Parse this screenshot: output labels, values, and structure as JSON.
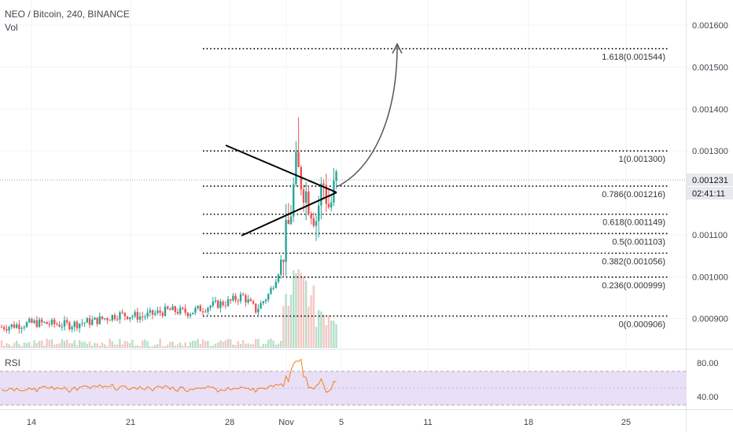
{
  "legend": {
    "symbol": "NEO / Bitcoin, 240, BINANCE",
    "volume": "Vol"
  },
  "rsi_panel": {
    "label": "RSI",
    "ticks": [
      "80.00",
      "40.00"
    ]
  },
  "price_axis": {
    "ticks": [
      "0.001600",
      "0.001500",
      "0.001400",
      "0.001300",
      "0.001100",
      "0.001000",
      "0.000900"
    ],
    "last_price": "0.001231",
    "countdown": "02:41:11",
    "last_price_color": "#26a69a",
    "countdown_color": "#e7e9ee"
  },
  "time_axis": {
    "ticks": [
      "14",
      "21",
      "28",
      "Nov",
      "5",
      "11",
      "18",
      "25"
    ]
  },
  "colors": {
    "up": "#26a69a",
    "down": "#ef5350",
    "up_volume": "#b7dfc9",
    "down_volume": "#f5c7c4",
    "rsi_line": "#f57f17",
    "rsi_band": "#e9dff6",
    "grid": "#f0f3fa",
    "drawing": "#000000",
    "arrow": "#555555"
  },
  "chart_data": {
    "type": "candlestick",
    "price_range": [
      0.00083,
      0.00166
    ],
    "rsi_range": [
      26,
      95
    ],
    "fibonacci_levels": [
      {
        "label": "1.618(0.001544)",
        "ratio": 1.618,
        "price": 0.001544
      },
      {
        "label": "1(0.001300)",
        "ratio": 1,
        "price": 0.0013
      },
      {
        "label": "0.786(0.001216)",
        "ratio": 0.786,
        "price": 0.001216
      },
      {
        "label": "0.618(0.001149)",
        "ratio": 0.618,
        "price": 0.001149
      },
      {
        "label": "0.5(0.001103)",
        "ratio": 0.5,
        "price": 0.001103
      },
      {
        "label": "0.382(0.001056)",
        "ratio": 0.382,
        "price": 0.001056
      },
      {
        "label": "0.236(0.000999)",
        "ratio": 0.236,
        "price": 0.000999
      },
      {
        "label": "0(0.000906)",
        "ratio": 0,
        "price": 0.000906
      }
    ],
    "rsi_band": [
      30,
      70
    ],
    "price_waypoints": [
      [
        0.0,
        0.00088
      ],
      [
        0.1,
        0.00089
      ],
      [
        0.2,
        0.000885
      ],
      [
        0.28,
        0.000895
      ],
      [
        0.35,
        0.00091
      ],
      [
        0.42,
        0.000905
      ],
      [
        0.5,
        0.00092
      ],
      [
        0.56,
        0.000915
      ],
      [
        0.62,
        0.00093
      ],
      [
        0.68,
        0.00094
      ],
      [
        0.72,
        0.000955
      ],
      [
        0.76,
        0.00092
      ],
      [
        0.8,
        0.00096
      ],
      [
        0.83,
        0.00102
      ],
      [
        0.86,
        0.00113
      ],
      [
        0.88,
        0.00126
      ],
      [
        0.9,
        0.00122
      ],
      [
        0.92,
        0.00118
      ],
      [
        0.94,
        0.00114
      ],
      [
        0.96,
        0.00123
      ],
      [
        0.98,
        0.00116
      ],
      [
        1.0,
        0.001231
      ]
    ]
  }
}
